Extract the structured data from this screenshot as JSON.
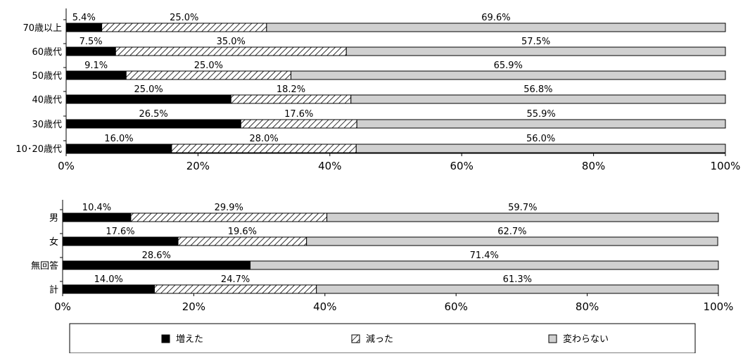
{
  "chart_data": [
    {
      "type": "bar",
      "orientation": "horizontal",
      "stacked": "percent",
      "categories": [
        "70歳以上",
        "60歳代",
        "50歳代",
        "40歳代",
        "30歳代",
        "10･20歳代"
      ],
      "series": [
        {
          "name": "増えた",
          "values": [
            5.4,
            7.5,
            9.1,
            25.0,
            26.5,
            16.0
          ],
          "labels": [
            "5.4%",
            "7.5%",
            "9.1%",
            "25.0%",
            "26.5%",
            "16.0%"
          ]
        },
        {
          "name": "減った",
          "values": [
            25.0,
            35.0,
            25.0,
            18.2,
            17.6,
            28.0
          ],
          "labels": [
            "25.0%",
            "35.0%",
            "25.0%",
            "18.2%",
            "17.6%",
            "28.0%"
          ]
        },
        {
          "name": "変わらない",
          "values": [
            69.6,
            57.5,
            65.9,
            56.8,
            55.9,
            56.0
          ],
          "labels": [
            "69.6%",
            "57.5%",
            "65.9%",
            "56.8%",
            "55.9%",
            "56.0%"
          ]
        }
      ],
      "xlim": [
        0,
        100
      ],
      "x_ticks": [
        "0%",
        "20%",
        "40%",
        "60%",
        "80%",
        "100%"
      ],
      "grid": false
    },
    {
      "type": "bar",
      "orientation": "horizontal",
      "stacked": "percent",
      "categories": [
        "男",
        "女",
        "無回答",
        "計"
      ],
      "series": [
        {
          "name": "増えた",
          "values": [
            10.4,
            17.6,
            28.6,
            14.0
          ],
          "labels": [
            "10.4%",
            "17.6%",
            "28.6%",
            "14.0%"
          ]
        },
        {
          "name": "減った",
          "values": [
            29.9,
            19.6,
            0,
            24.7
          ],
          "labels": [
            "29.9%",
            "19.6%",
            "",
            "24.7%"
          ]
        },
        {
          "name": "変わらない",
          "values": [
            59.7,
            62.7,
            71.4,
            61.3
          ],
          "labels": [
            "59.7%",
            "62.7%",
            "71.4%",
            "61.3%"
          ]
        }
      ],
      "xlim": [
        0,
        100
      ],
      "x_ticks": [
        "0%",
        "20%",
        "40%",
        "60%",
        "80%",
        "100%"
      ],
      "grid": false
    }
  ],
  "legend": {
    "placement": "bottom",
    "items": [
      {
        "label": "増えた",
        "color": "#000000",
        "pattern": "solid"
      },
      {
        "label": "減った",
        "color": "#ffffff",
        "pattern": "diagonal-hatch"
      },
      {
        "label": "変わらない",
        "color": "#d0d0d0",
        "pattern": "solid"
      }
    ]
  }
}
